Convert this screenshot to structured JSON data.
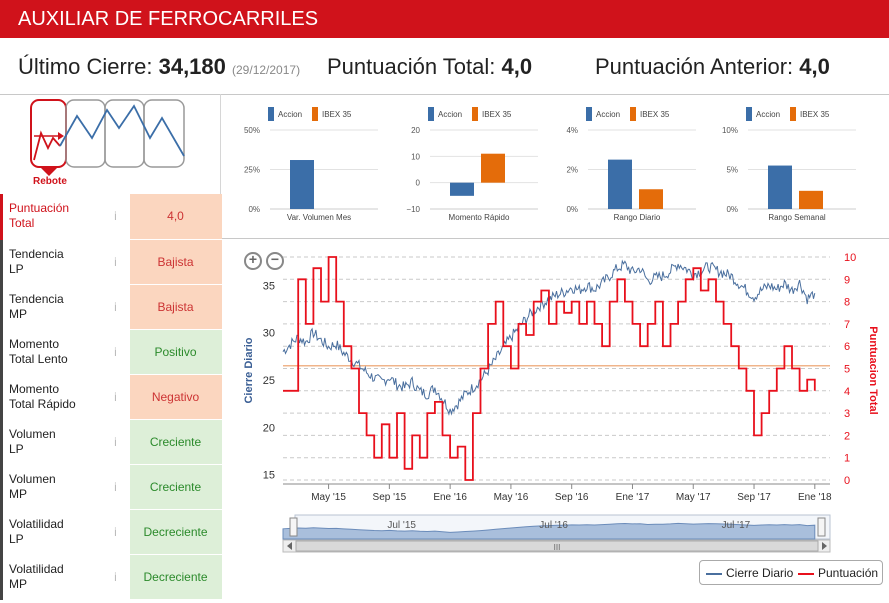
{
  "app": {
    "title": "AUXILIAR DE FERROCARRILES"
  },
  "summary": {
    "last_close_label": "Último Cierre:",
    "last_close_value": "34,180",
    "last_close_date": "(29/12/2017)",
    "total_score_label": "Puntuación Total:",
    "total_score_value": "4,0",
    "prev_score_label": "Puntuación Anterior:",
    "prev_score_value": "4,0"
  },
  "pattern": {
    "label": "Rebote",
    "icon": "rebound-pattern-icon"
  },
  "mini_charts": [
    {
      "title": "Var. Volumen Mes",
      "yticks": [
        "50%",
        "25%",
        "0%"
      ],
      "ylim": [
        0,
        50
      ],
      "accion": 31,
      "ibex": 0
    },
    {
      "title": "Momento Rápido",
      "yticks": [
        "20",
        "10",
        "0",
        "−10"
      ],
      "ylim": [
        -10,
        20
      ],
      "accion": -5,
      "ibex": 11
    },
    {
      "title": "Rango Diario",
      "yticks": [
        "4%",
        "2%",
        "0%"
      ],
      "ylim": [
        0,
        4
      ],
      "accion": 2.5,
      "ibex": 1.0
    },
    {
      "title": "Rango Semanal",
      "yticks": [
        "10%",
        "5%",
        "0%"
      ],
      "ylim": [
        0,
        10
      ],
      "accion": 5.5,
      "ibex": 2.3
    }
  ],
  "mini_legend": {
    "accion": "Accion",
    "ibex": "IBEX 35"
  },
  "indicators": [
    {
      "label1": "Puntuación",
      "label2": "Total",
      "value": "4,0",
      "tone": "orange",
      "highlight": true
    },
    {
      "label1": "Tendencia",
      "label2": "LP",
      "value": "Bajista",
      "tone": "orange",
      "highlight": false
    },
    {
      "label1": "Tendencia",
      "label2": "MP",
      "value": "Bajista",
      "tone": "orange",
      "highlight": false
    },
    {
      "label1": "Momento",
      "label2": "Total Lento",
      "value": "Positivo",
      "tone": "green",
      "highlight": false
    },
    {
      "label1": "Momento",
      "label2": "Total Rápido",
      "value": "Negativo",
      "tone": "orange",
      "highlight": false
    },
    {
      "label1": "Volumen",
      "label2": "LP",
      "value": "Creciente",
      "tone": "green",
      "highlight": false
    },
    {
      "label1": "Volumen",
      "label2": "MP",
      "value": "Creciente",
      "tone": "green",
      "highlight": false
    },
    {
      "label1": "Volatilidad",
      "label2": "LP",
      "value": "Decreciente",
      "tone": "green",
      "highlight": false
    },
    {
      "label1": "Volatilidad",
      "label2": "MP",
      "value": "Decreciente",
      "tone": "green",
      "highlight": false
    }
  ],
  "info_glyph": "i",
  "colors": {
    "brand": "#d0121b",
    "accion": "#3b6ea8",
    "ibex": "#e46c0a",
    "price": "#4a6f9e",
    "score": "#e8101c",
    "ref": "#f0b48a"
  },
  "chart_data": {
    "type": "line",
    "title": "",
    "ylabel_left": "Cierre Diario",
    "ylabel_right": "Puntuacion Total",
    "ylim_left": [
      14,
      38
    ],
    "ylim_right": [
      0,
      10
    ],
    "yticks_left": [
      15,
      20,
      25,
      30,
      35
    ],
    "yticks_right": [
      0,
      1,
      2,
      3,
      4,
      5,
      6,
      7,
      8,
      9,
      10
    ],
    "xlim": [
      0,
      36
    ],
    "xticks": [
      {
        "t": 3,
        "label": "May '15"
      },
      {
        "t": 7,
        "label": "Sep '15"
      },
      {
        "t": 11,
        "label": "Ene '16"
      },
      {
        "t": 15,
        "label": "May '16"
      },
      {
        "t": 19,
        "label": "Sep '16"
      },
      {
        "t": 23,
        "label": "Ene '17"
      },
      {
        "t": 27,
        "label": "May '17"
      },
      {
        "t": 31,
        "label": "Sep '17"
      },
      {
        "t": 35,
        "label": "Ene '18"
      }
    ],
    "reference_line": 26.5,
    "series": [
      {
        "name": "Cierre Diario",
        "axis": "left",
        "t": [
          0,
          0.5,
          1,
          1.5,
          2,
          2.5,
          3,
          3.5,
          4,
          4.5,
          5,
          5.5,
          6,
          6.5,
          7,
          7.5,
          8,
          8.5,
          9,
          9.5,
          10,
          10.5,
          11,
          11.5,
          12,
          12.5,
          13,
          13.5,
          14,
          14.5,
          15,
          15.5,
          16,
          16.5,
          17,
          17.5,
          18,
          18.5,
          19,
          19.5,
          20,
          20.5,
          21,
          21.5,
          22,
          22.5,
          23,
          23.5,
          24,
          24.5,
          25,
          25.5,
          26,
          26.5,
          27,
          27.5,
          28,
          28.5,
          29,
          29.5,
          30,
          30.5,
          31,
          31.5,
          32,
          32.5,
          33,
          33.5,
          34,
          34.5,
          35
        ],
        "values": [
          28,
          28.8,
          29.5,
          29,
          30,
          29.2,
          28.5,
          28.8,
          27.8,
          27.2,
          26.5,
          25.8,
          25.2,
          24.8,
          25.3,
          24.5,
          24.2,
          24.8,
          23.8,
          23.5,
          24.2,
          23,
          21.8,
          22.5,
          23.5,
          24.2,
          25,
          26,
          27.2,
          28.4,
          29.5,
          30.5,
          31.5,
          32.3,
          33,
          33.5,
          34,
          34.3,
          34.8,
          34.5,
          35,
          34.6,
          35.2,
          36,
          36.8,
          37.2,
          36.4,
          36.8,
          35.5,
          35.8,
          36,
          36.5,
          37.3,
          36.8,
          36.2,
          36.5,
          37,
          36.6,
          36.3,
          36,
          35.2,
          34.5,
          33.8,
          34.5,
          35,
          34.6,
          35.2,
          34.5,
          35.3,
          33.6,
          34.18
        ]
      },
      {
        "name": "Puntuación",
        "axis": "right",
        "t": [
          0,
          1,
          1.5,
          2,
          2.5,
          3,
          3.5,
          4,
          4.5,
          5,
          5.5,
          6,
          6.5,
          7,
          7.5,
          8,
          8.5,
          9,
          9.5,
          10,
          10.5,
          11,
          11.5,
          12,
          12.5,
          13,
          13.5,
          14,
          14.5,
          15,
          15.5,
          16,
          16.5,
          17,
          17.5,
          18,
          18.5,
          19,
          19.5,
          20,
          20.5,
          21,
          21.5,
          22,
          22.5,
          23,
          23.5,
          24,
          24.5,
          25,
          25.5,
          26,
          26.5,
          27,
          27.5,
          28,
          28.5,
          29,
          29.5,
          30,
          30.5,
          31,
          31.5,
          32,
          32.5,
          33,
          33.5,
          34,
          34.5,
          35
        ],
        "values": [
          4,
          9,
          7,
          9.5,
          8,
          10,
          8,
          6,
          5,
          3,
          2,
          1,
          2.5,
          1,
          3,
          0.5,
          2,
          1,
          3,
          3.5,
          2,
          1,
          1.5,
          0,
          3,
          5,
          7,
          8,
          6,
          5,
          7,
          6.5,
          8,
          8.5,
          7,
          8,
          7.5,
          8,
          7,
          8,
          7,
          6,
          8,
          9,
          8,
          7,
          6,
          7,
          8,
          6,
          7,
          8,
          9,
          9.5,
          8.5,
          9,
          8,
          7,
          6,
          5,
          4,
          2,
          3,
          4,
          5,
          6,
          5,
          4,
          4.5,
          4
        ]
      }
    ],
    "navigator": {
      "labels": [
        {
          "t": 9.5,
          "label": "Jul '15"
        },
        {
          "t": 19.5,
          "label": "Jul '16"
        },
        {
          "t": 31.5,
          "label": "Jul '17"
        }
      ],
      "scroll_glyph": "III"
    },
    "legend": [
      "Cierre Diario",
      "Puntuación"
    ],
    "legend_placement": "bottom-right"
  }
}
